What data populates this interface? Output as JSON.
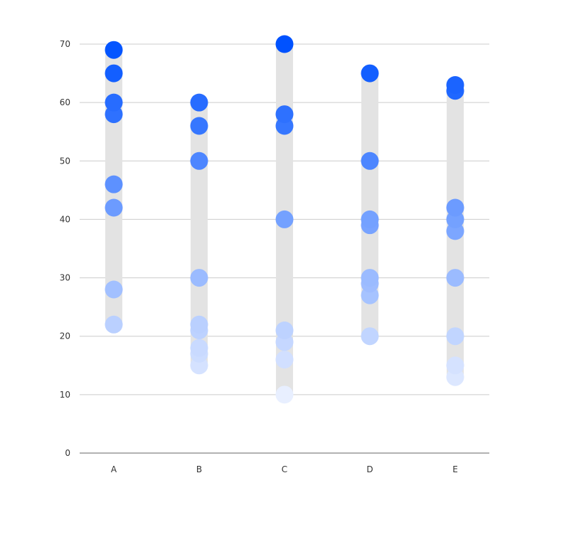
{
  "chart_data": {
    "type": "scatter",
    "title": "",
    "xlabel": "",
    "ylabel": "",
    "categories": [
      "A",
      "B",
      "C",
      "D",
      "E"
    ],
    "ylim": [
      0,
      70
    ],
    "yticks": [
      0,
      10,
      20,
      30,
      40,
      50,
      60,
      70
    ],
    "grid": true,
    "range_bars": [
      {
        "category": "A",
        "min": 22,
        "max": 69
      },
      {
        "category": "B",
        "min": 15,
        "max": 60
      },
      {
        "category": "C",
        "min": 10,
        "max": 70
      },
      {
        "category": "D",
        "min": 20,
        "max": 65
      },
      {
        "category": "E",
        "min": 13,
        "max": 63
      }
    ],
    "points": {
      "A": [
        69,
        65,
        60,
        58,
        46,
        42,
        28,
        22
      ],
      "B": [
        60,
        56,
        50,
        30,
        22,
        21,
        18,
        17,
        15
      ],
      "C": [
        70,
        58,
        56,
        40,
        21,
        19,
        16,
        10
      ],
      "D": [
        65,
        50,
        40,
        39,
        30,
        29,
        27,
        20
      ],
      "E": [
        63,
        62,
        42,
        40,
        38,
        30,
        20,
        15,
        13
      ]
    }
  },
  "colors": {
    "background": "#ffffff",
    "range_bar": "#e3e3e3",
    "gridline": "#cccccc",
    "axis": "#666666",
    "point_dark": "#0052ff",
    "point_light": "#e8efff"
  }
}
